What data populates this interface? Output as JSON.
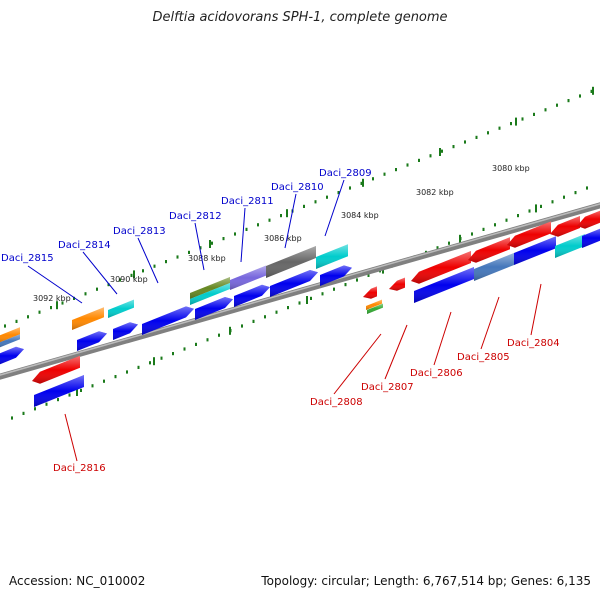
{
  "title": "Delftia acidovorans SPH-1, complete genome",
  "footer": {
    "accession": "Accession: NC_010002",
    "summary": "Topology: circular; Length: 6,767,514 bp; Genes: 6,135"
  },
  "scale_labels": [
    {
      "text": "3080 kbp",
      "kbp": 3080
    },
    {
      "text": "3082 kbp",
      "kbp": 3082
    },
    {
      "text": "3084 kbp",
      "kbp": 3084
    },
    {
      "text": "3086 kbp",
      "kbp": 3086
    },
    {
      "text": "3088 kbp",
      "kbp": 3088
    },
    {
      "text": "3090 kbp",
      "kbp": 3090
    },
    {
      "text": "3092 kbp",
      "kbp": 3092
    }
  ],
  "gene_labels": {
    "upper": [
      {
        "name": "Daci_2815"
      },
      {
        "name": "Daci_2814"
      },
      {
        "name": "Daci_2813"
      },
      {
        "name": "Daci_2812"
      },
      {
        "name": "Daci_2811"
      },
      {
        "name": "Daci_2810"
      },
      {
        "name": "Daci_2809"
      }
    ],
    "lower": [
      {
        "name": "Daci_2816"
      },
      {
        "name": "Daci_2808"
      },
      {
        "name": "Daci_2807"
      },
      {
        "name": "Daci_2806"
      },
      {
        "name": "Daci_2805"
      },
      {
        "name": "Daci_2804"
      }
    ]
  },
  "colors": {
    "upper_label": "#0000cc",
    "lower_label": "#cc0000",
    "backbone": "#808080",
    "tick": "#1a7a1a",
    "blue": "#0000ee",
    "red": "#ee0000",
    "orange": "#ff8800",
    "cyan": "#00cccc",
    "olive": "#668822",
    "purple": "#7766dd",
    "gray": "#666666",
    "steel": "#4477bb",
    "green": "#33aa33"
  }
}
